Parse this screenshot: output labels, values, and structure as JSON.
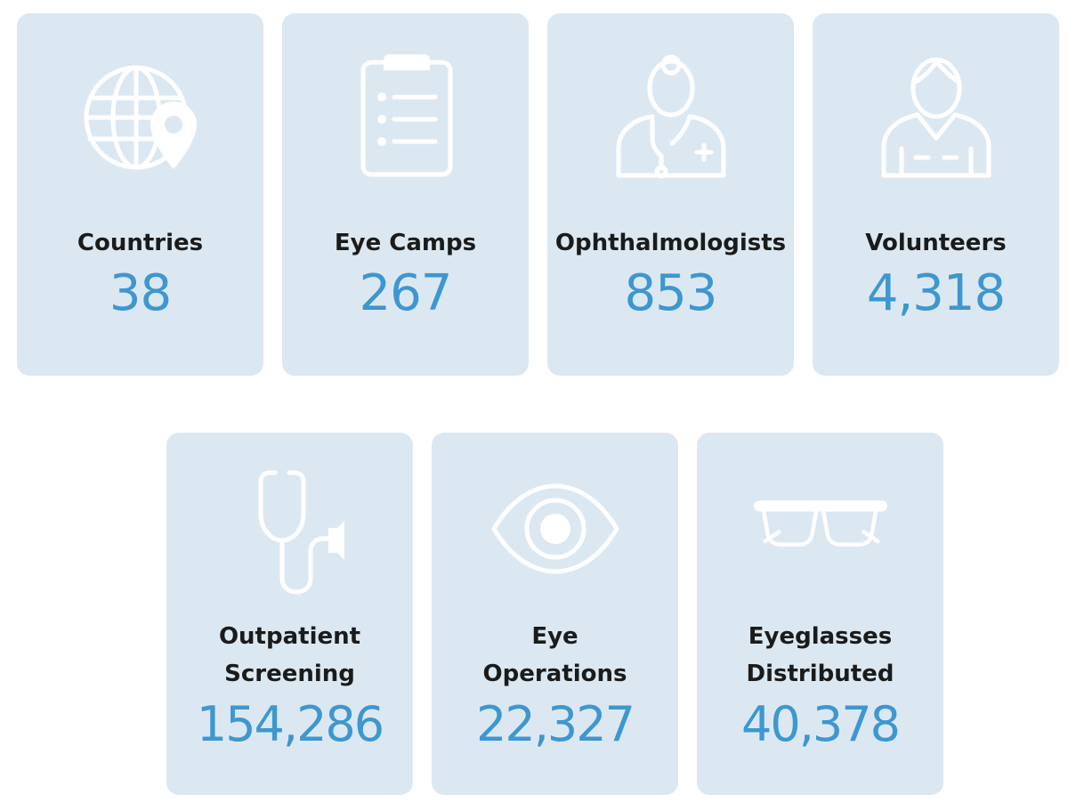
{
  "stats": {
    "countries": {
      "label": "Countries",
      "value": "38"
    },
    "eye_camps": {
      "label": "Eye Camps",
      "value": "267"
    },
    "ophthalmologists": {
      "label": "Ophthalmologists",
      "value": "853"
    },
    "volunteers": {
      "label": "Volunteers",
      "value": "4,318"
    },
    "outpatient": {
      "label_line1": "Outpatient",
      "label_line2": "Screening",
      "value": "154,286"
    },
    "operations": {
      "label_line1": "Eye",
      "label_line2": "Operations",
      "value": "22,327"
    },
    "eyeglasses": {
      "label_line1": "Eyeglasses",
      "label_line2": "Distributed",
      "value": "40,378"
    }
  },
  "icons": {
    "countries": "globe-pin-icon",
    "eye_camps": "clipboard-icon",
    "ophthalmologists": "doctor-icon",
    "volunteers": "volunteer-icon",
    "outpatient": "stethoscope-icon",
    "operations": "eye-icon",
    "eyeglasses": "eyeglasses-icon"
  },
  "colors": {
    "card_background": "#dce8f1",
    "value_color": "#3d97d0",
    "label_color": "#1b1b1b",
    "icon_color": "#ffffff"
  }
}
